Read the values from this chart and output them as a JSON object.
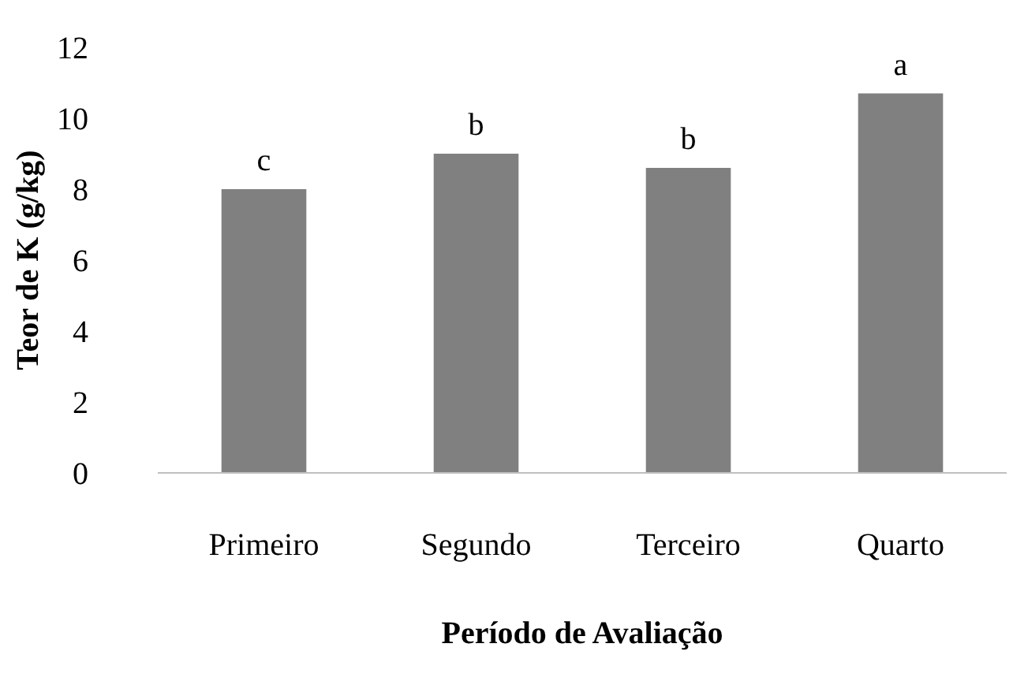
{
  "chart_data": {
    "type": "bar",
    "xlabel": "Período de Avaliação",
    "ylabel": "Teor de K (g/kg)",
    "categories": [
      "Primeiro",
      "Segundo",
      "Terceiro",
      "Quarto"
    ],
    "values": [
      8.0,
      9.0,
      8.6,
      10.7
    ],
    "color": "#808080",
    "ylim": [
      0,
      12
    ],
    "yticks": [
      0,
      2,
      4,
      6,
      8,
      10,
      12
    ],
    "grid": false,
    "annotations": [
      {
        "text": "c",
        "x": "Primeiro",
        "y": 8.0
      },
      {
        "text": "b",
        "x": "Segundo",
        "y": 9.0
      },
      {
        "text": "b",
        "x": "Terceiro",
        "y": 8.6
      },
      {
        "text": "a",
        "x": "Quarto",
        "y": 10.7
      }
    ]
  }
}
